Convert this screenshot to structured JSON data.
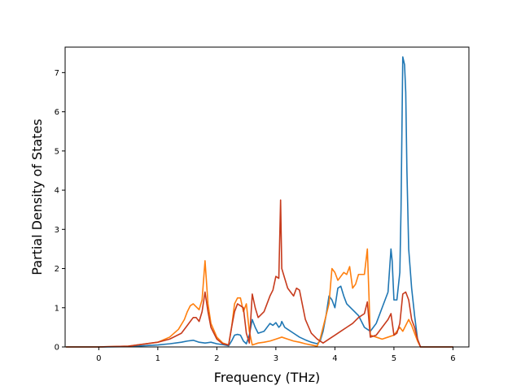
{
  "chart_data": {
    "type": "line",
    "title": "",
    "xlabel": "Frequency (THz)",
    "ylabel": "Partial Density of States",
    "xlim": [
      -0.57,
      6.27
    ],
    "ylim": [
      0,
      7.65
    ],
    "x_ticks": [
      0,
      1,
      2,
      3,
      4,
      5,
      6
    ],
    "x_tick_labels": [
      "0",
      "1",
      "2",
      "3",
      "4",
      "5",
      "6"
    ],
    "y_ticks": [
      0,
      1,
      2,
      3,
      4,
      5,
      6,
      7
    ],
    "y_tick_labels": [
      "0",
      "1",
      "2",
      "3",
      "4",
      "5",
      "6",
      "7"
    ],
    "grid": false,
    "series": [
      {
        "color": "#1f77b4",
        "x": [
          -0.55,
          0.0,
          0.5,
          1.0,
          1.2,
          1.4,
          1.5,
          1.6,
          1.7,
          1.8,
          1.9,
          2.0,
          2.1,
          2.2,
          2.25,
          2.3,
          2.35,
          2.4,
          2.45,
          2.5,
          2.55,
          2.6,
          2.65,
          2.7,
          2.8,
          2.9,
          2.95,
          3.0,
          3.05,
          3.08,
          3.1,
          3.15,
          3.2,
          3.3,
          3.4,
          3.5,
          3.6,
          3.7,
          3.75,
          3.8,
          3.85,
          3.9,
          3.95,
          4.0,
          4.05,
          4.1,
          4.15,
          4.2,
          4.3,
          4.4,
          4.5,
          4.55,
          4.6,
          4.7,
          4.8,
          4.9,
          4.95,
          4.97,
          5.0,
          5.05,
          5.1,
          5.12,
          5.15,
          5.18,
          5.2,
          5.22,
          5.25,
          5.3,
          5.35,
          5.4,
          5.45,
          6.0
        ],
        "y": [
          0,
          0,
          0.01,
          0.05,
          0.08,
          0.12,
          0.15,
          0.17,
          0.12,
          0.1,
          0.12,
          0.08,
          0.06,
          0.03,
          0.15,
          0.3,
          0.32,
          0.3,
          0.15,
          0.08,
          0.3,
          0.7,
          0.5,
          0.35,
          0.4,
          0.6,
          0.55,
          0.62,
          0.5,
          0.55,
          0.65,
          0.5,
          0.45,
          0.35,
          0.25,
          0.18,
          0.12,
          0.08,
          0.15,
          0.4,
          0.8,
          1.3,
          1.2,
          1.0,
          1.5,
          1.55,
          1.3,
          1.1,
          0.95,
          0.8,
          0.5,
          0.45,
          0.4,
          0.6,
          1.0,
          1.4,
          2.5,
          2.2,
          1.2,
          1.2,
          1.9,
          3.5,
          7.4,
          7.2,
          6.5,
          4.5,
          2.5,
          1.5,
          0.8,
          0.2,
          0,
          0
        ]
      },
      {
        "color": "#ff7f0e",
        "x": [
          -0.55,
          0.0,
          0.5,
          1.0,
          1.2,
          1.35,
          1.45,
          1.5,
          1.55,
          1.6,
          1.7,
          1.75,
          1.8,
          1.85,
          1.9,
          2.0,
          2.1,
          2.2,
          2.25,
          2.3,
          2.35,
          2.4,
          2.45,
          2.5,
          2.55,
          2.6,
          2.7,
          2.8,
          2.9,
          3.0,
          3.1,
          3.2,
          3.3,
          3.4,
          3.5,
          3.6,
          3.7,
          3.75,
          3.8,
          3.85,
          3.9,
          3.95,
          4.0,
          4.05,
          4.1,
          4.15,
          4.2,
          4.25,
          4.3,
          4.35,
          4.4,
          4.45,
          4.5,
          4.55,
          4.6,
          4.7,
          4.8,
          4.9,
          5.0,
          5.05,
          5.1,
          5.15,
          5.2,
          5.25,
          5.3,
          5.35,
          5.4,
          5.45,
          6.0
        ],
        "y": [
          0,
          0,
          0.02,
          0.12,
          0.25,
          0.45,
          0.7,
          0.9,
          1.05,
          1.1,
          0.95,
          1.2,
          2.2,
          1.1,
          0.6,
          0.25,
          0.1,
          0.05,
          0.5,
          1.1,
          1.25,
          1.25,
          0.9,
          1.1,
          0.4,
          0.05,
          0.1,
          0.12,
          0.15,
          0.2,
          0.25,
          0.2,
          0.15,
          0.12,
          0.08,
          0.05,
          0.02,
          0.2,
          0.5,
          0.8,
          1.1,
          2.0,
          1.9,
          1.7,
          1.8,
          1.9,
          1.85,
          2.05,
          1.5,
          1.6,
          1.85,
          1.85,
          1.85,
          2.5,
          0.3,
          0.25,
          0.2,
          0.25,
          0.3,
          0.4,
          0.5,
          0.4,
          0.55,
          0.7,
          0.55,
          0.35,
          0.15,
          0,
          0
        ]
      },
      {
        "color": "#c73b1d",
        "x": [
          -0.55,
          0.0,
          0.5,
          1.0,
          1.2,
          1.4,
          1.5,
          1.55,
          1.6,
          1.65,
          1.7,
          1.75,
          1.8,
          1.85,
          1.9,
          2.0,
          2.1,
          2.2,
          2.25,
          2.3,
          2.35,
          2.4,
          2.45,
          2.5,
          2.55,
          2.6,
          2.65,
          2.7,
          2.8,
          2.9,
          2.95,
          3.0,
          3.05,
          3.08,
          3.1,
          3.15,
          3.2,
          3.25,
          3.3,
          3.35,
          3.4,
          3.5,
          3.6,
          3.7,
          3.8,
          3.9,
          4.0,
          4.1,
          4.2,
          4.3,
          4.4,
          4.5,
          4.55,
          4.6,
          4.7,
          4.8,
          4.9,
          4.95,
          5.0,
          5.05,
          5.1,
          5.15,
          5.2,
          5.25,
          5.3,
          5.35,
          5.4,
          5.45,
          6.0
        ],
        "y": [
          0,
          0,
          0.02,
          0.12,
          0.2,
          0.35,
          0.55,
          0.65,
          0.75,
          0.75,
          0.65,
          0.9,
          1.4,
          0.9,
          0.5,
          0.2,
          0.08,
          0.05,
          0.5,
          0.9,
          1.1,
          1.05,
          1.0,
          0.35,
          0.1,
          1.35,
          1.0,
          0.75,
          0.9,
          1.3,
          1.45,
          1.8,
          1.75,
          3.75,
          2.0,
          1.75,
          1.5,
          1.4,
          1.3,
          1.5,
          1.45,
          0.7,
          0.35,
          0.2,
          0.1,
          0.2,
          0.3,
          0.4,
          0.5,
          0.6,
          0.75,
          0.85,
          1.15,
          0.25,
          0.3,
          0.5,
          0.7,
          0.85,
          0.3,
          0.35,
          0.6,
          1.35,
          1.4,
          1.2,
          0.7,
          0.5,
          0.2,
          0,
          0
        ]
      }
    ]
  }
}
